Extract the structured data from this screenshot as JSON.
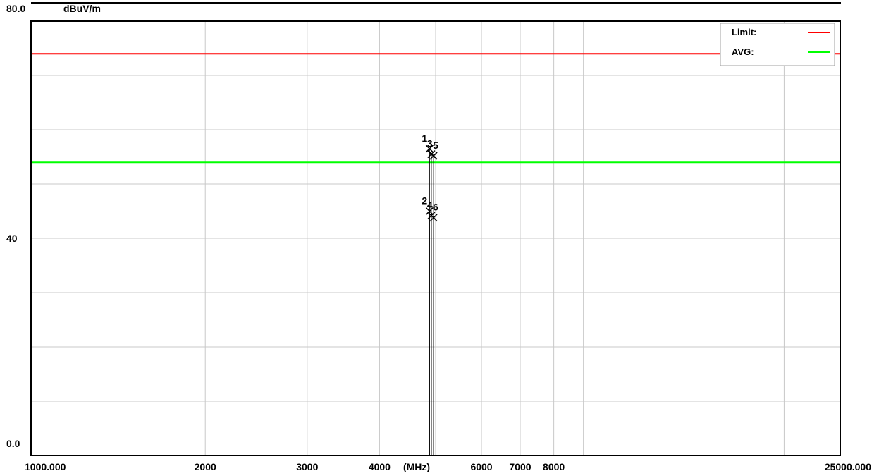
{
  "chart_data": {
    "type": "line",
    "ylabel": "dBuV/m",
    "xlabel": "(MHz)",
    "x_scale": "log",
    "xlim": [
      1000,
      25000
    ],
    "ylim": [
      0,
      80
    ],
    "grid": true,
    "y_tick_labels": [
      {
        "value": 80,
        "label": "80.0"
      },
      {
        "value": 40,
        "label": "40"
      },
      {
        "value": 0,
        "label": "0.0"
      }
    ],
    "y_grid_values": [
      70,
      60,
      50,
      40,
      30,
      20,
      10
    ],
    "x_tick_labels": [
      {
        "value": 1000,
        "label": "1000.000"
      },
      {
        "value": 2000,
        "label": "2000"
      },
      {
        "value": 3000,
        "label": "3000"
      },
      {
        "value": 4000,
        "label": "4000"
      },
      {
        "value": 6000,
        "label": "6000"
      },
      {
        "value": 7000,
        "label": "7000"
      },
      {
        "value": 8000,
        "label": "8000"
      },
      {
        "value": 25000,
        "label": "25000.000"
      }
    ],
    "x_grid_values": [
      2000,
      3000,
      4000,
      5000,
      6000,
      7000,
      8000,
      9000,
      20000
    ],
    "limit_lines": [
      {
        "name": "Limit:",
        "value": 74,
        "color": "#ff0000"
      },
      {
        "name": "AVG:",
        "value": 54,
        "color": "#00ff00"
      }
    ],
    "legend_placement": "top-right",
    "markers": [
      {
        "label": "1",
        "x": 4880,
        "y": 56.5
      },
      {
        "label": "2",
        "x": 4880,
        "y": 45.0
      },
      {
        "label": "3",
        "x": 4915,
        "y": 55.5
      },
      {
        "label": "4",
        "x": 4915,
        "y": 44.2
      },
      {
        "label": "5",
        "x": 4960,
        "y": 55.2
      },
      {
        "label": "6",
        "x": 4960,
        "y": 43.8
      }
    ]
  }
}
